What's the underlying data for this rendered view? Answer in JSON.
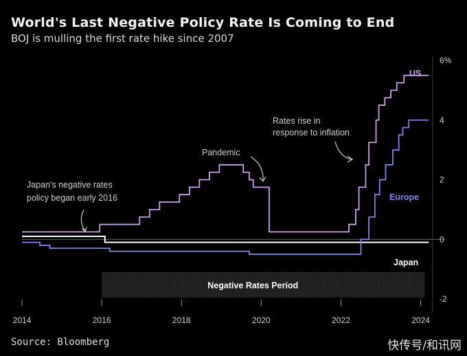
{
  "chart_data": {
    "type": "line",
    "title": "World's Last Negative Policy Rate Is Coming to End",
    "subtitle": "BOJ is mulling the first rate hike since 2007",
    "source": "Source: Bloomberg",
    "xlim": [
      2014,
      2024.3
    ],
    "ylim": [
      -2,
      6
    ],
    "x_ticks": [
      2014,
      2016,
      2018,
      2020,
      2022,
      2024
    ],
    "y_ticks": [
      6,
      4,
      2,
      0,
      -2
    ],
    "y_tick_labels": [
      "6%",
      "4",
      "2",
      "0",
      "-2"
    ],
    "colors": {
      "US": "#c9a0e6",
      "Europe": "#7d86e8",
      "Japan": "#ffffff",
      "shade": "#2a2a2a"
    },
    "series": [
      {
        "name": "US",
        "step": true,
        "x": [
          2014.0,
          2015.95,
          2016.95,
          2017.2,
          2017.45,
          2017.95,
          2018.2,
          2018.45,
          2018.7,
          2018.95,
          2019.55,
          2019.7,
          2019.8,
          2020.2,
          2022.2,
          2022.37,
          2022.45,
          2022.62,
          2022.7,
          2022.88,
          2022.95,
          2023.1,
          2023.25,
          2023.4,
          2023.58,
          2024.2
        ],
        "y": [
          0.25,
          0.5,
          0.75,
          1.0,
          1.25,
          1.5,
          1.75,
          2.0,
          2.25,
          2.5,
          2.25,
          2.0,
          1.75,
          0.25,
          0.5,
          1.0,
          1.75,
          2.5,
          3.25,
          4.0,
          4.5,
          4.75,
          5.0,
          5.25,
          5.5,
          5.5
        ]
      },
      {
        "name": "Europe",
        "step": true,
        "x": [
          2014.0,
          2014.45,
          2014.7,
          2015.95,
          2016.2,
          2019.7,
          2022.5,
          2022.7,
          2022.85,
          2022.97,
          2023.12,
          2023.3,
          2023.45,
          2023.55,
          2023.7,
          2024.2
        ],
        "y": [
          -0.1,
          -0.2,
          -0.3,
          -0.3,
          -0.4,
          -0.5,
          0.0,
          0.75,
          1.5,
          2.0,
          2.5,
          3.0,
          3.5,
          3.75,
          4.0,
          4.0
        ]
      },
      {
        "name": "Japan",
        "step": true,
        "x": [
          2014.0,
          2016.08,
          2024.2
        ],
        "y": [
          0.1,
          -0.1,
          -0.1
        ]
      }
    ],
    "shaded_region": {
      "label": "Negative Rates Period",
      "x": [
        2016.0,
        2024.1
      ]
    },
    "annotations": [
      {
        "text": [
          "Japan's negative rates",
          "policy began early 2016"
        ]
      },
      {
        "text": [
          "Pandemic"
        ]
      },
      {
        "text": [
          "Rates rise in",
          "response to inflation"
        ]
      }
    ]
  },
  "footer": {
    "source": "Source: Bloomberg",
    "watermark": "快传号/和讯网"
  }
}
